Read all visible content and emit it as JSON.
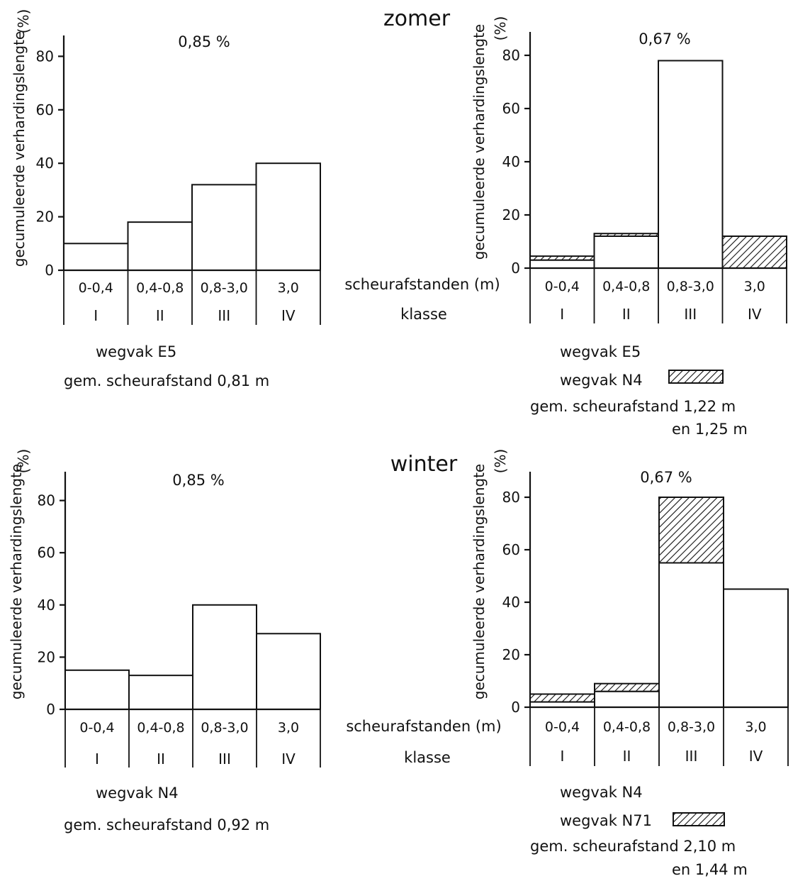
{
  "season_labels": {
    "zomer": "zomer",
    "winter": "winter"
  },
  "row_labels": {
    "distance": "scheurafstanden (m)",
    "klasse": "klasse"
  },
  "axis": {
    "ylabel": "gecumuleerde verhardingslengte",
    "unit": "(%)"
  },
  "chart_data": [
    {
      "id": "zomer-E5",
      "type": "bar",
      "title": "0,85 %",
      "ylabel": "gecumuleerde verhardingslengte (%)",
      "ylim": [
        0,
        90
      ],
      "yticks": [
        "0",
        "20",
        "40",
        "60",
        "80"
      ],
      "categories": [
        "0-0,4",
        "0,4-0,8",
        "0,8-3,0",
        "3,0"
      ],
      "classes": [
        "I",
        "II",
        "III",
        "IV"
      ],
      "series": [
        {
          "name": "wegvak E5",
          "values": [
            10,
            18,
            32,
            40
          ]
        }
      ],
      "legend": [
        "wegvak E5",
        "gem. scheurafstand 0,81 m"
      ]
    },
    {
      "id": "zomer-E5-N4",
      "type": "bar",
      "title": "0,67 %",
      "ylabel": "gecumuleerde verhardingslengte (%)",
      "ylim": [
        0,
        90
      ],
      "yticks": [
        "0",
        "20",
        "40",
        "60",
        "80"
      ],
      "categories": [
        "0-0,4",
        "0,4-0,8",
        "0,8-3,0",
        "3,0"
      ],
      "classes": [
        "I",
        "II",
        "III",
        "IV"
      ],
      "series": [
        {
          "name": "wegvak E5",
          "values": [
            3,
            12,
            78,
            0
          ]
        },
        {
          "name": "wegvak N4",
          "values": [
            4.5,
            13,
            0,
            12
          ]
        }
      ],
      "legend": [
        "wegvak E5",
        "wegvak N4",
        "gem. scheurafstand 1,22 m",
        "en 1,25 m"
      ]
    },
    {
      "id": "winter-N4",
      "type": "bar",
      "title": "0,85 %",
      "ylabel": "gecumuleerde verhardingslengte (%)",
      "ylim": [
        0,
        90
      ],
      "yticks": [
        "0",
        "20",
        "40",
        "60",
        "80"
      ],
      "categories": [
        "0-0,4",
        "0,4-0,8",
        "0,8-3,0",
        "3,0"
      ],
      "classes": [
        "I",
        "II",
        "III",
        "IV"
      ],
      "series": [
        {
          "name": "wegvak N4",
          "values": [
            15,
            13,
            40,
            29
          ]
        }
      ],
      "legend": [
        "wegvak N4",
        "gem. scheurafstand 0,92 m"
      ]
    },
    {
      "id": "winter-N4-N71",
      "type": "bar",
      "title": "0,67 %",
      "ylabel": "gecumuleerde verhardingslengte (%)",
      "ylim": [
        0,
        90
      ],
      "yticks": [
        "0",
        "20",
        "40",
        "60",
        "80"
      ],
      "categories": [
        "0-0,4",
        "0,4-0,8",
        "0,8-3,0",
        "3,0"
      ],
      "classes": [
        "I",
        "II",
        "III",
        "IV"
      ],
      "series": [
        {
          "name": "wegvak N4",
          "values": [
            2,
            6,
            55,
            45
          ]
        },
        {
          "name": "wegvak N71",
          "values": [
            5,
            9,
            80,
            0
          ]
        }
      ],
      "legend": [
        "wegvak N4",
        "wegvak N71",
        "gem. scheurafstand 2,10 m",
        "en 1,44 m"
      ]
    }
  ]
}
